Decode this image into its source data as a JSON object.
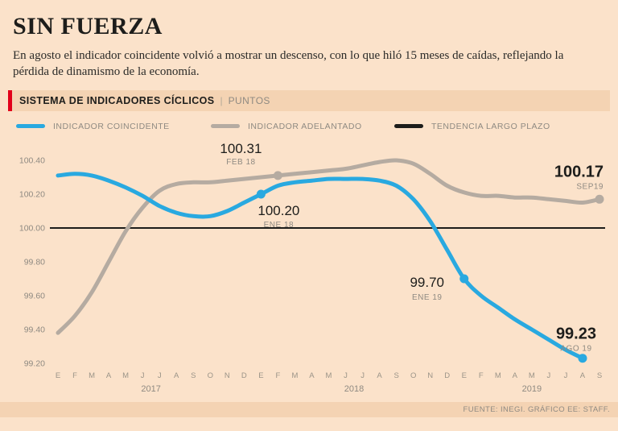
{
  "header": {
    "title": "SIN FUERZA",
    "subtitle": "En agosto el indicador coincidente volvió a mostrar un descenso, con lo que hiló 15 meses de caídas, reflejando la pérdida de dinamismo de la economía."
  },
  "section": {
    "title": "SISTEMA DE INDICADORES CÍCLICOS",
    "separator": "|",
    "unit": "PUNTOS"
  },
  "legend": [
    {
      "label": "INDICADOR COINCIDENTE",
      "color": "#29a9e0"
    },
    {
      "label": "INDICADOR ADELANTADO",
      "color": "#b5aba1"
    },
    {
      "label": "TENDENCIA LARGO PLAZO",
      "color": "#1d1d1b"
    }
  ],
  "footer": {
    "source": "FUENTE: INEGI. GRÁFICO EE: STAFF."
  },
  "chart_data": {
    "type": "line",
    "title": "SISTEMA DE INDICADORES CÍCLICOS",
    "ylabel": "PUNTOS",
    "ylim": [
      99.2,
      100.4
    ],
    "grid": false,
    "yticks": [
      "100.40",
      "100.20",
      "100.00",
      "99.80",
      "99.60",
      "99.40",
      "99.20"
    ],
    "x_labels": [
      "E",
      "F",
      "M",
      "A",
      "M",
      "J",
      "J",
      "A",
      "S",
      "O",
      "N",
      "D",
      "E",
      "F",
      "M",
      "A",
      "M",
      "J",
      "J",
      "A",
      "S",
      "O",
      "N",
      "D",
      "E",
      "F",
      "M",
      "A",
      "M",
      "J",
      "J",
      "A",
      "S"
    ],
    "year_labels": [
      {
        "label": "2017",
        "center_index": 5.5
      },
      {
        "label": "2018",
        "center_index": 17.5
      },
      {
        "label": "2019",
        "center_index": 28
      }
    ],
    "series": [
      {
        "name": "INDICADOR COINCIDENTE",
        "color": "#29a9e0",
        "values": [
          100.31,
          100.32,
          100.31,
          100.28,
          100.24,
          100.19,
          100.13,
          100.09,
          100.07,
          100.07,
          100.1,
          100.15,
          100.2,
          100.25,
          100.27,
          100.28,
          100.29,
          100.29,
          100.29,
          100.28,
          100.25,
          100.17,
          100.04,
          99.87,
          99.7,
          99.6,
          99.53,
          99.46,
          99.4,
          99.34,
          99.28,
          99.23,
          null
        ]
      },
      {
        "name": "INDICADOR ADELANTADO",
        "color": "#b5aba1",
        "values": [
          99.38,
          99.48,
          99.62,
          99.8,
          99.98,
          100.12,
          100.22,
          100.26,
          100.27,
          100.27,
          100.28,
          100.29,
          100.3,
          100.31,
          100.32,
          100.33,
          100.34,
          100.35,
          100.37,
          100.39,
          100.4,
          100.38,
          100.32,
          100.25,
          100.21,
          100.19,
          100.19,
          100.18,
          100.18,
          100.17,
          100.16,
          100.15,
          100.17
        ]
      },
      {
        "name": "TENDENCIA LARGO PLAZO",
        "color": "#1d1d1b",
        "constant": 100.0
      }
    ],
    "annotations": [
      {
        "series": 1,
        "index": 13,
        "value": "100.31",
        "sub": "FEB 18",
        "dot": true,
        "bold": false,
        "anchor": "middle",
        "dx": -46,
        "dy_value": -28,
        "dy_sub": -14
      },
      {
        "series": 0,
        "index": 12,
        "value": "100.20",
        "sub": "ENE 18",
        "dot": true,
        "bold": false,
        "anchor": "middle",
        "dx": 22,
        "dy_value": 26,
        "dy_sub": 41
      },
      {
        "series": 0,
        "index": 24,
        "value": "99.70",
        "sub": "ENE 19",
        "dot": true,
        "bold": false,
        "anchor": "middle",
        "dx": -46,
        "dy_value": 10,
        "dy_sub": 26
      },
      {
        "series": 0,
        "index": 31,
        "value": "99.23",
        "sub": "AGO 19",
        "dot": true,
        "bold": true,
        "anchor": "middle",
        "dx": -8,
        "dy_value": -24,
        "dy_sub": -9
      },
      {
        "series": 1,
        "index": 32,
        "value": "100.17",
        "sub": "SEP19",
        "dot": true,
        "bold": true,
        "anchor": "end",
        "dx": 5,
        "dy_value": -28,
        "dy_sub": -13
      }
    ]
  }
}
